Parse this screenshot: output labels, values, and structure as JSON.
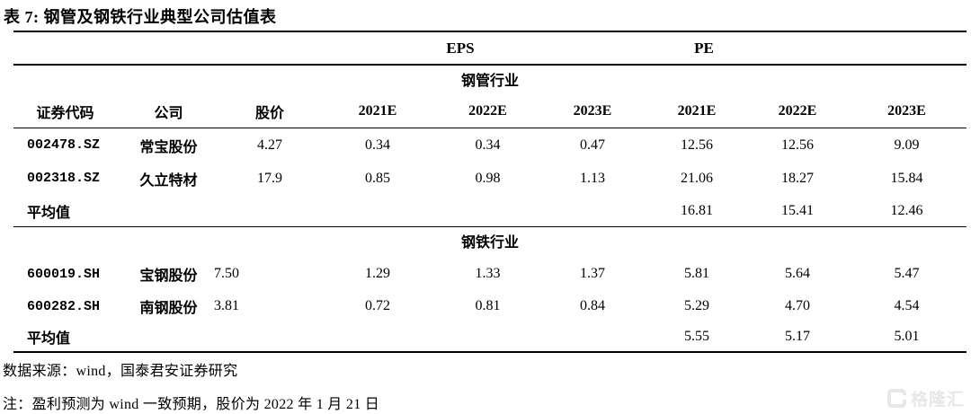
{
  "title": "表 7: 钢管及钢铁行业典型公司估值表",
  "table": {
    "group_headers": {
      "eps": "EPS",
      "pe": "PE"
    },
    "columns": [
      "证券代码",
      "公司",
      "股价",
      "2021E",
      "2022E",
      "2023E",
      "2021E",
      "2022E",
      "2023E"
    ],
    "sections": [
      {
        "name": "钢管行业",
        "rows": [
          {
            "code": "002478.SZ",
            "company": "常宝股份",
            "price": "4.27",
            "eps": [
              "0.34",
              "0.34",
              "0.47"
            ],
            "pe": [
              "12.56",
              "12.56",
              "9.09"
            ]
          },
          {
            "code": "002318.SZ",
            "company": "久立特材",
            "price": "17.9",
            "eps": [
              "0.85",
              "0.98",
              "1.13"
            ],
            "pe": [
              "21.06",
              "18.27",
              "15.84"
            ]
          }
        ],
        "average": {
          "label": "平均值",
          "pe": [
            "16.81",
            "15.41",
            "12.46"
          ]
        }
      },
      {
        "name": "钢铁行业",
        "rows": [
          {
            "code": "600019.SH",
            "company": "宝钢股份",
            "price": "7.50",
            "eps": [
              "1.29",
              "1.33",
              "1.37"
            ],
            "pe": [
              "5.81",
              "5.64",
              "5.47"
            ]
          },
          {
            "code": "600282.SH",
            "company": "南钢股份",
            "price": "3.81",
            "eps": [
              "0.72",
              "0.81",
              "0.84"
            ],
            "pe": [
              "5.29",
              "4.70",
              "4.54"
            ]
          }
        ],
        "average": {
          "label": "平均值",
          "pe": [
            "5.55",
            "5.17",
            "5.01"
          ]
        }
      }
    ]
  },
  "footnotes": {
    "source": "数据来源：wind，国泰君安证券研究",
    "note": "注：盈利预测为 wind 一致预期，股价为 2022 年 1 月 21 日"
  },
  "watermark": {
    "text": "格隆汇",
    "color": "#e7e7e7"
  }
}
